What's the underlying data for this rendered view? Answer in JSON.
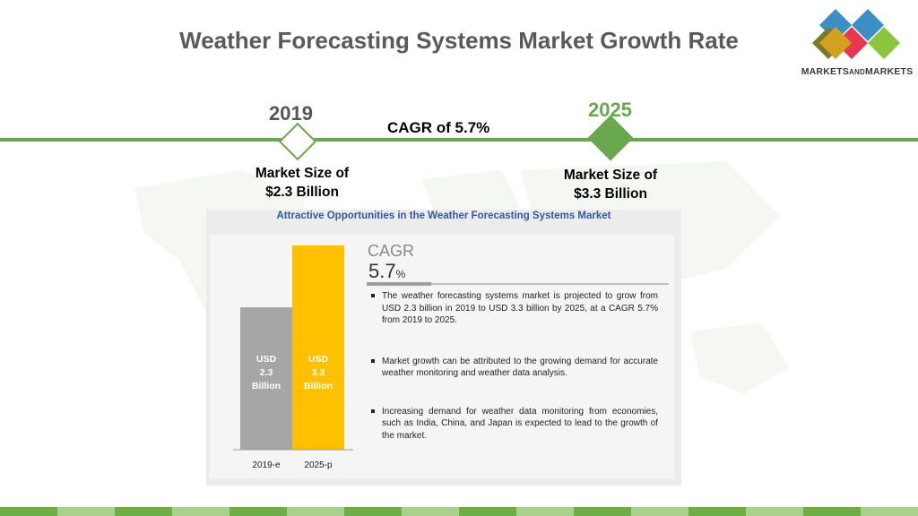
{
  "title": "Weather Forecasting Systems Market Growth Rate",
  "logo": {
    "text_main_1": "MARKETS",
    "text_small": "AND",
    "text_main_2": "MARKETS"
  },
  "timeline": {
    "start_year": "2019",
    "end_year": "2025",
    "cagr_label": "CAGR of 5.7%",
    "start_size_line1": "Market Size of",
    "start_size_line2": "$2.3 Billion",
    "end_size_line1": "Market Size of",
    "end_size_line2": "$3.3 Billion"
  },
  "panel": {
    "title": "Attractive Opportunities in the Weather Forecasting Systems Market",
    "cagr_label": "CAGR",
    "cagr_value": "5.7",
    "cagr_unit": "%",
    "bullets": [
      "The weather forecasting systems market is projected to grow from USD 2.3 billion in 2019 to USD 3.3 billion by 2025, at a CAGR 5.7% from 2019 to 2025.",
      "Market growth can be attributed to the growing demand for accurate weather monitoring and weather data analysis.",
      "Increasing demand for weather data monitoring from economies, such as India, China, and Japan is expected to lead to the growth of the market."
    ]
  },
  "chart_data": {
    "type": "bar",
    "categories": [
      "2019-e",
      "2025-p"
    ],
    "values": [
      2.3,
      3.3
    ],
    "bar_labels": [
      [
        "USD",
        "2.3",
        "Billion"
      ],
      [
        "USD",
        "3.3",
        "Billion"
      ]
    ],
    "ylim": [
      0,
      3.3
    ],
    "colors": [
      "#a6a6a6",
      "#ffc000"
    ],
    "label_colors": [
      "#ffffff",
      "#ffffff"
    ],
    "grid": false
  },
  "colors": {
    "accent_green": "#6aa84f",
    "footer": [
      "#70ad47",
      "#a9d18e",
      "#70ad47",
      "#a9d18e",
      "#70ad47",
      "#a9d18e",
      "#70ad47",
      "#a9d18e",
      "#70ad47",
      "#a9d18e",
      "#70ad47",
      "#a9d18e",
      "#70ad47",
      "#a9d18e",
      "#70ad47",
      "#a9d18e"
    ]
  }
}
